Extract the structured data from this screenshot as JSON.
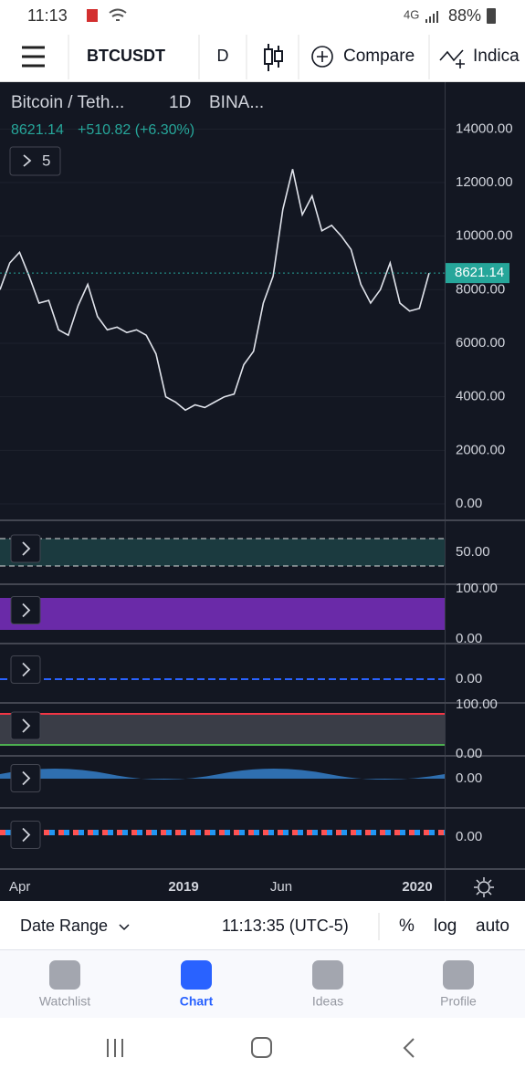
{
  "status_bar": {
    "time": "11:13",
    "network": "4G",
    "battery": "88%"
  },
  "toolbar": {
    "symbol": "BTCUSDT",
    "interval": "D",
    "compare": "Compare",
    "indicators": "Indica"
  },
  "chart_data": {
    "type": "line",
    "title": "Bitcoin / Teth...",
    "interval": "1D",
    "exchange": "BINA...",
    "last_price": "8621.14",
    "change": "+510.82 (+6.30%)",
    "price_label": "8621.14",
    "collapse_count": 5,
    "values": [
      8000,
      9000,
      9400,
      8500,
      7500,
      7600,
      6500,
      6300,
      7400,
      8200,
      7000,
      6500,
      6600,
      6400,
      6500,
      6300,
      5600,
      4000,
      3800,
      3500,
      3700,
      3600,
      3800,
      4000,
      4100,
      5200,
      5700,
      7500,
      8500,
      11000,
      12500,
      10800,
      11500,
      10200,
      10400,
      10000,
      9500,
      8200,
      7500,
      8000,
      9000,
      7500,
      7200,
      7300,
      8621.14
    ],
    "color": "#e0e3eb",
    "ylim": [
      0,
      15750
    ],
    "yticks": [
      {
        "value": 14000,
        "label": "14000.00"
      },
      {
        "value": 12000,
        "label": "12000.00"
      },
      {
        "value": 10000,
        "label": "10000.00"
      },
      {
        "value": 8000,
        "label": "8000.00"
      },
      {
        "value": 6000,
        "label": "6000.00"
      },
      {
        "value": 4000,
        "label": "4000.00"
      },
      {
        "value": 2000,
        "label": "2000.00"
      },
      {
        "value": 0,
        "label": "0.00"
      }
    ],
    "grid": true
  },
  "time_axis": [
    "Apr",
    "2019",
    "Jun",
    "2020"
  ],
  "indicator_panes": [
    [
      "50.00"
    ],
    [
      "100.00",
      "0.00"
    ],
    [
      "0.00"
    ],
    [
      "100.00",
      "0.00"
    ],
    [
      "0.00"
    ],
    [
      "0.00"
    ]
  ],
  "bottom_bar": {
    "date_range": "Date Range",
    "clock": "11:13:35 (UTC-5)",
    "percent": "%",
    "log": "log",
    "auto": "auto"
  },
  "tabs": [
    "Watchlist",
    "Chart",
    "Ideas",
    "Profile"
  ]
}
